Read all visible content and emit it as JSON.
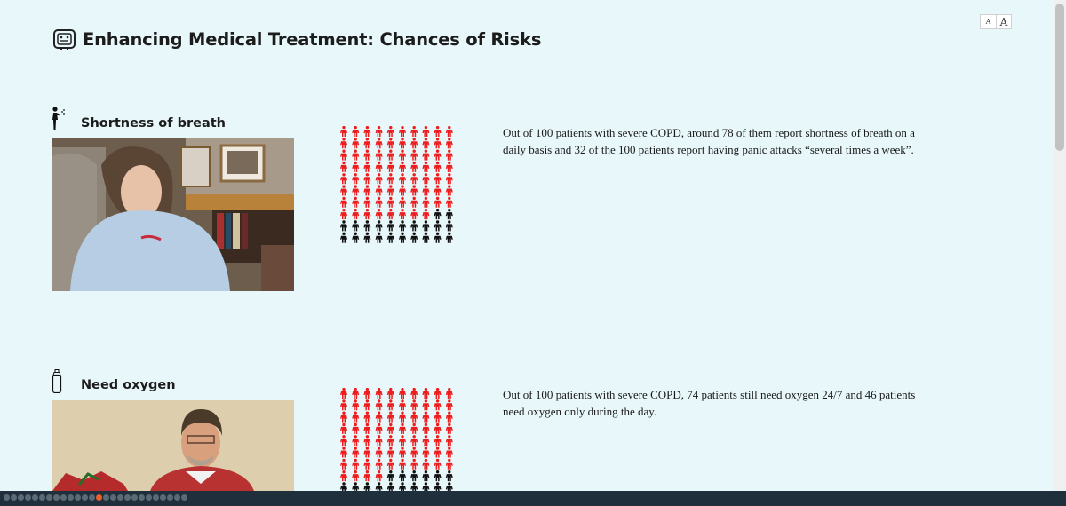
{
  "page": {
    "title": "Enhancing Medical Treatment: Chances of Risks",
    "font_small_label": "A",
    "font_large_label": "A"
  },
  "sections": [
    {
      "heading": "Shortness of breath",
      "icon": "person-coughing-icon",
      "photo": "video-still-woman",
      "pictogram": {
        "total": 100,
        "highlighted": 78,
        "highlight_color": "#ee1c1c",
        "base_color": "#111111"
      },
      "text": "Out of 100 patients with severe COPD, around 78 of them report shortness of breath on a daily basis and 32 of the 100 patients report having panic attacks “several times a week”."
    },
    {
      "heading": "Need oxygen",
      "icon": "oxygen-tank-icon",
      "photo": "video-still-man",
      "pictogram": {
        "total": 100,
        "highlighted": 74,
        "highlight_color": "#ee1c1c",
        "base_color": "#111111"
      },
      "text": "Out of 100 patients with severe COPD, 74 patients still need oxygen 24/7 and 46 patients need oxygen only during the day."
    }
  ],
  "pager": {
    "count": 26,
    "active_index": 13
  },
  "colors": {
    "background": "#e8f7fa",
    "accent": "#e8602c",
    "bar": "#1f2f3b"
  }
}
